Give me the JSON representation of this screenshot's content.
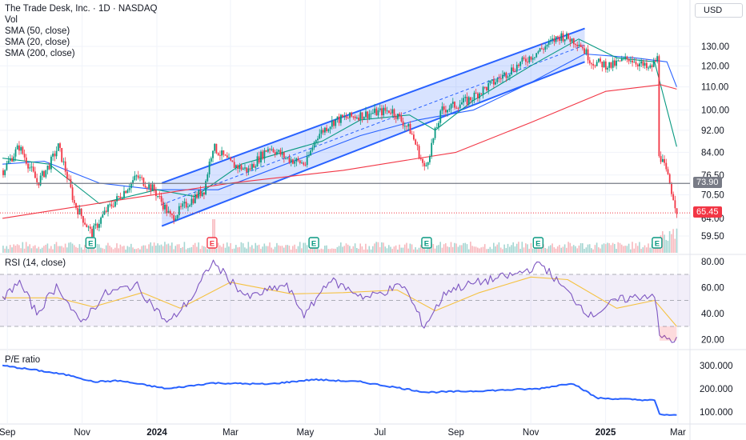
{
  "header": {
    "title": "The Trade Desk, Inc. · 1D · NASDAQ",
    "studies": [
      "Vol",
      "SMA (50, close)",
      "SMA (20, close)",
      "SMA (200, close)"
    ],
    "currency": "USD"
  },
  "price_panel": {
    "last_price_label": "65.45",
    "hline_label": "73.90",
    "earnings_markers": [
      {
        "label": "E",
        "date": "2023-11-08",
        "color": "#089981"
      },
      {
        "label": "E",
        "date": "2024-02-15",
        "color": "#f23645"
      },
      {
        "label": "E",
        "date": "2024-05-08",
        "color": "#089981"
      },
      {
        "label": "E",
        "date": "2024-08-08",
        "color": "#089981"
      },
      {
        "label": "E",
        "date": "2024-11-07",
        "color": "#089981"
      },
      {
        "label": "E",
        "date": "2025-02-12",
        "color": "#089981"
      }
    ]
  },
  "rsi_panel": {
    "label": "RSI (14, close)"
  },
  "pe_panel": {
    "label": "P/E ratio"
  },
  "x_axis": {
    "ticks": [
      "Sep",
      "Nov",
      "2024",
      "Mar",
      "May",
      "Jul",
      "Sep",
      "Nov",
      "2025",
      "Mar"
    ]
  },
  "colors": {
    "candle_up": "#089981",
    "candle_down": "#f23645",
    "sma50": "#2962ff",
    "sma20": "#089981",
    "sma200": "#f23645",
    "channel": "#2962ff",
    "rsi": "#7e57c2",
    "rsi_ma": "#f5c242",
    "pe": "#2962ff",
    "hline": "#787b86"
  },
  "chart_data": [
    {
      "type": "candlestick",
      "title": "The Trade Desk, Inc. · 1D · NASDAQ",
      "currency": "USD",
      "y_ticks": [
        59.5,
        64.0,
        70.5,
        76.5,
        84.0,
        92.0,
        100.0,
        110.0,
        120.0,
        130.0
      ],
      "y_scale": "log",
      "x_ticks": [
        "Sep",
        "Nov",
        "2024",
        "Mar",
        "May",
        "Jul",
        "Sep",
        "Nov",
        "2025",
        "Mar"
      ],
      "price_path": [
        [
          "2023-08-28",
          78
        ],
        [
          "2023-09-10",
          86
        ],
        [
          "2023-09-25",
          74
        ],
        [
          "2023-10-05",
          80
        ],
        [
          "2023-10-12",
          86
        ],
        [
          "2023-10-25",
          68
        ],
        [
          "2023-11-08",
          60
        ],
        [
          "2023-11-20",
          66
        ],
        [
          "2023-12-01",
          70
        ],
        [
          "2023-12-15",
          76
        ],
        [
          "2023-12-29",
          72
        ],
        [
          "2024-01-12",
          64
        ],
        [
          "2024-01-25",
          68
        ],
        [
          "2024-02-08",
          72
        ],
        [
          "2024-02-15",
          86
        ],
        [
          "2024-03-01",
          80
        ],
        [
          "2024-03-15",
          78
        ],
        [
          "2024-04-01",
          86
        ],
        [
          "2024-04-15",
          82
        ],
        [
          "2024-05-01",
          80
        ],
        [
          "2024-05-10",
          90
        ],
        [
          "2024-05-25",
          96
        ],
        [
          "2024-06-15",
          98
        ],
        [
          "2024-07-10",
          100
        ],
        [
          "2024-07-25",
          92
        ],
        [
          "2024-08-06",
          78
        ],
        [
          "2024-08-20",
          100
        ],
        [
          "2024-09-10",
          104
        ],
        [
          "2024-10-01",
          112
        ],
        [
          "2024-10-20",
          120
        ],
        [
          "2024-11-08",
          128
        ],
        [
          "2024-11-25",
          136
        ],
        [
          "2024-12-10",
          132
        ],
        [
          "2024-12-20",
          122
        ],
        [
          "2025-01-05",
          120
        ],
        [
          "2025-01-20",
          124
        ],
        [
          "2025-02-05",
          118
        ],
        [
          "2025-02-12",
          124
        ],
        [
          "2025-02-13",
          84
        ],
        [
          "2025-02-20",
          76
        ],
        [
          "2025-02-28",
          65.45
        ]
      ],
      "last_close": 65.45,
      "horizontal_line": 73.9,
      "series": [
        {
          "name": "SMA (50, close)",
          "path": [
            [
              "2023-08-28",
              80
            ],
            [
              "2023-10-01",
              81
            ],
            [
              "2023-11-15",
              74
            ],
            [
              "2024-01-01",
              72
            ],
            [
              "2024-02-20",
              72
            ],
            [
              "2024-04-15",
              80
            ],
            [
              "2024-06-15",
              90
            ],
            [
              "2024-08-01",
              96
            ],
            [
              "2024-09-15",
              100
            ],
            [
              "2024-11-01",
              112
            ],
            [
              "2024-12-15",
              126
            ],
            [
              "2025-01-25",
              124
            ],
            [
              "2025-02-20",
              122
            ],
            [
              "2025-02-28",
              110
            ]
          ]
        },
        {
          "name": "SMA (20, close)",
          "path": [
            [
              "2023-08-28",
              82
            ],
            [
              "2023-10-05",
              80
            ],
            [
              "2023-11-15",
              68
            ],
            [
              "2024-01-01",
              72
            ],
            [
              "2024-02-01",
              70
            ],
            [
              "2024-03-10",
              80
            ],
            [
              "2024-05-15",
              88
            ],
            [
              "2024-06-15",
              96
            ],
            [
              "2024-07-25",
              98
            ],
            [
              "2024-08-15",
              92
            ],
            [
              "2024-09-15",
              104
            ],
            [
              "2024-11-01",
              120
            ],
            [
              "2024-12-10",
              134
            ],
            [
              "2025-01-10",
              124
            ],
            [
              "2025-02-10",
              122
            ],
            [
              "2025-02-28",
              86
            ]
          ]
        },
        {
          "name": "SMA (200, close)",
          "path": [
            [
              "2023-08-28",
              64
            ],
            [
              "2023-12-01",
              69
            ],
            [
              "2024-03-01",
              74
            ],
            [
              "2024-06-01",
              78
            ],
            [
              "2024-09-01",
              84
            ],
            [
              "2024-11-01",
              95
            ],
            [
              "2025-01-01",
              108
            ],
            [
              "2025-02-15",
              111
            ],
            [
              "2025-02-28",
              109
            ]
          ]
        }
      ],
      "channel": {
        "upper": [
          [
            "2024-01-05",
            74
          ],
          [
            "2024-12-15",
            140
          ]
        ],
        "lower": [
          [
            "2024-01-05",
            62
          ],
          [
            "2024-12-15",
            122
          ]
        ]
      }
    },
    {
      "type": "line",
      "title": "RSI (14, close)",
      "y_ticks": [
        20.0,
        40.0,
        60.0,
        80.0
      ],
      "bands": [
        30,
        50,
        70
      ],
      "series": [
        {
          "name": "RSI (14, close)",
          "path": [
            [
              "2023-08-28",
              50
            ],
            [
              "2023-09-10",
              65
            ],
            [
              "2023-09-25",
              40
            ],
            [
              "2023-10-12",
              62
            ],
            [
              "2023-10-30",
              32
            ],
            [
              "2023-11-20",
              55
            ],
            [
              "2023-12-15",
              62
            ],
            [
              "2024-01-10",
              32
            ],
            [
              "2024-02-01",
              55
            ],
            [
              "2024-02-15",
              80
            ],
            [
              "2024-03-15",
              52
            ],
            [
              "2024-04-15",
              62
            ],
            [
              "2024-05-01",
              38
            ],
            [
              "2024-05-20",
              66
            ],
            [
              "2024-06-20",
              52
            ],
            [
              "2024-07-20",
              62
            ],
            [
              "2024-08-06",
              30
            ],
            [
              "2024-08-25",
              58
            ],
            [
              "2024-09-20",
              64
            ],
            [
              "2024-10-20",
              70
            ],
            [
              "2024-11-10",
              78
            ],
            [
              "2024-11-25",
              62
            ],
            [
              "2024-12-20",
              38
            ],
            [
              "2025-01-10",
              50
            ],
            [
              "2025-02-10",
              55
            ],
            [
              "2025-02-14",
              22
            ],
            [
              "2025-02-28",
              19
            ]
          ]
        },
        {
          "name": "RSI-based MA",
          "path": [
            [
              "2023-08-28",
              52
            ],
            [
              "2023-10-12",
              52
            ],
            [
              "2023-11-10",
              45
            ],
            [
              "2023-12-20",
              56
            ],
            [
              "2024-01-20",
              44
            ],
            [
              "2024-03-01",
              64
            ],
            [
              "2024-04-20",
              55
            ],
            [
              "2024-06-01",
              56
            ],
            [
              "2024-07-15",
              58
            ],
            [
              "2024-08-15",
              42
            ],
            [
              "2024-09-20",
              56
            ],
            [
              "2024-11-01",
              68
            ],
            [
              "2024-12-01",
              66
            ],
            [
              "2025-01-10",
              44
            ],
            [
              "2025-02-10",
              50
            ],
            [
              "2025-02-28",
              30
            ]
          ]
        }
      ]
    },
    {
      "type": "line",
      "title": "P/E ratio",
      "y_ticks": [
        100.0,
        200.0,
        300.0
      ],
      "series": [
        {
          "name": "P/E ratio",
          "path": [
            [
              "2023-08-28",
              300
            ],
            [
              "2023-09-25",
              280
            ],
            [
              "2023-10-25",
              255
            ],
            [
              "2023-11-10",
              230
            ],
            [
              "2023-12-01",
              235
            ],
            [
              "2024-01-10",
              200
            ],
            [
              "2024-02-15",
              225
            ],
            [
              "2024-04-01",
              220
            ],
            [
              "2024-05-08",
              240
            ],
            [
              "2024-06-15",
              230
            ],
            [
              "2024-08-08",
              185
            ],
            [
              "2024-09-15",
              190
            ],
            [
              "2024-11-07",
              200
            ],
            [
              "2024-12-05",
              225
            ],
            [
              "2024-12-25",
              160
            ],
            [
              "2025-02-10",
              150
            ],
            [
              "2025-02-14",
              90
            ],
            [
              "2025-02-28",
              85
            ]
          ]
        }
      ]
    }
  ]
}
